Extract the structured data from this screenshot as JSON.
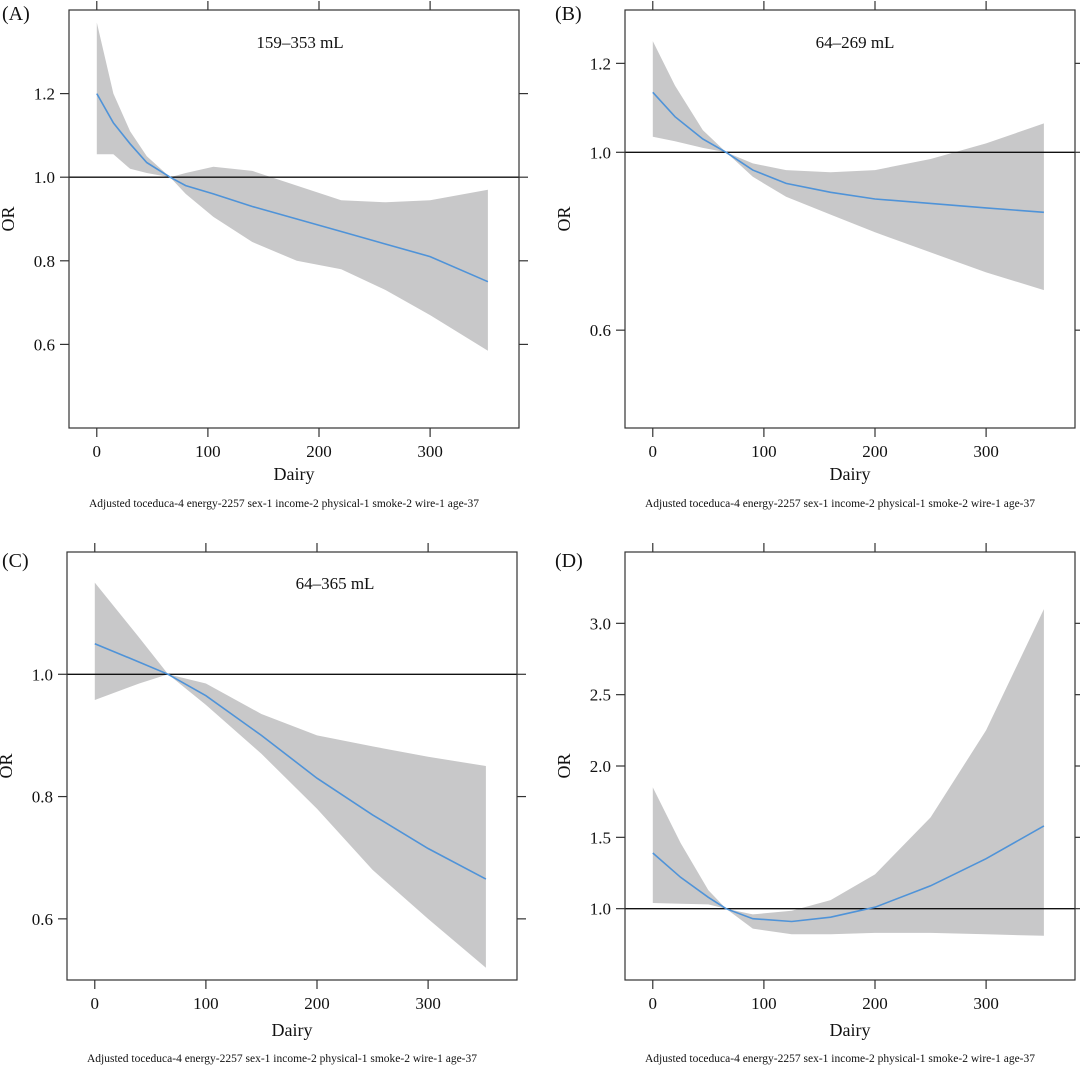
{
  "figure": {
    "panel_labels": [
      "(A)",
      "(B)",
      "(C)",
      "(D)"
    ]
  },
  "chart_data": [
    {
      "type": "line",
      "panel": "(A)",
      "title": "159–353 mL",
      "xlabel": "Dairy",
      "ylabel": "OR",
      "footnote": "Adjusted toceduca-4 energy-2257 sex-1 income-2 physical-1 smoke-2 wire-1 age-37",
      "xlim": [
        -25,
        380
      ],
      "ylim": [
        0.4,
        1.4
      ],
      "xticks": [
        0,
        100,
        200,
        300
      ],
      "yticks": [
        0.6,
        0.8,
        1.0,
        1.2
      ],
      "yticklabels": [
        "0.6",
        "0.8",
        "1.0",
        "1.2"
      ],
      "reference_y": 1.0,
      "x": [
        0,
        15,
        30,
        45,
        66,
        80,
        105,
        140,
        180,
        220,
        260,
        300,
        352
      ],
      "estimate": [
        1.2,
        1.13,
        1.08,
        1.035,
        1.0,
        0.98,
        0.96,
        0.93,
        0.9,
        0.87,
        0.84,
        0.81,
        0.75
      ],
      "ci_lower": [
        1.055,
        1.055,
        1.02,
        1.01,
        1.0,
        0.96,
        0.905,
        0.845,
        0.8,
        0.78,
        0.73,
        0.67,
        0.585
      ],
      "ci_upper": [
        1.37,
        1.2,
        1.11,
        1.05,
        1.0,
        1.01,
        1.025,
        1.015,
        0.98,
        0.945,
        0.94,
        0.945,
        0.97
      ]
    },
    {
      "type": "line",
      "panel": "(B)",
      "title": "64–269 mL",
      "xlabel": "Dairy",
      "ylabel": "OR",
      "footnote": "Adjusted toceduca-4 energy-2257 sex-1 income-2 physical-1 smoke-2 wire-1 age-37",
      "xlim": [
        -25,
        380
      ],
      "ylim": [
        0.38,
        1.32
      ],
      "xticks": [
        0,
        100,
        200,
        300
      ],
      "yticks": [
        0.6,
        1.0,
        1.2
      ],
      "yticklabels": [
        "0.6",
        "1.0",
        "1.2"
      ],
      "reference_y": 1.0,
      "x": [
        0,
        20,
        45,
        66,
        90,
        120,
        160,
        200,
        250,
        300,
        352
      ],
      "estimate": [
        1.135,
        1.08,
        1.03,
        1.0,
        0.96,
        0.93,
        0.91,
        0.895,
        0.885,
        0.875,
        0.865
      ],
      "ci_lower": [
        1.035,
        1.025,
        1.01,
        1.0,
        0.945,
        0.9,
        0.86,
        0.82,
        0.775,
        0.73,
        0.69
      ],
      "ci_upper": [
        1.25,
        1.15,
        1.05,
        1.0,
        0.975,
        0.96,
        0.955,
        0.96,
        0.985,
        1.02,
        1.065
      ]
    },
    {
      "type": "line",
      "panel": "(C)",
      "title": "64–365 mL",
      "xlabel": "Dairy",
      "ylabel": "OR",
      "footnote": "Adjusted toceduca-4 energy-2257 sex-1 income-2 physical-1 smoke-2 wire-1 age-37",
      "xlim": [
        -25,
        380
      ],
      "ylim": [
        0.5,
        1.2
      ],
      "xticks": [
        0,
        100,
        200,
        300
      ],
      "yticks": [
        0.6,
        0.8,
        1.0
      ],
      "yticklabels": [
        "0.6",
        "0.8",
        "1.0"
      ],
      "reference_y": 1.0,
      "x": [
        0,
        40,
        66,
        100,
        150,
        200,
        250,
        300,
        352
      ],
      "estimate": [
        1.05,
        1.02,
        1.0,
        0.965,
        0.9,
        0.83,
        0.77,
        0.715,
        0.665
      ],
      "ci_lower": [
        0.958,
        0.985,
        1.0,
        0.95,
        0.87,
        0.78,
        0.68,
        0.6,
        0.52
      ],
      "ci_upper": [
        1.15,
        1.06,
        1.0,
        0.985,
        0.935,
        0.9,
        0.882,
        0.865,
        0.85
      ]
    },
    {
      "type": "line",
      "panel": "(D)",
      "title": "",
      "xlabel": "Dairy",
      "ylabel": "OR",
      "footnote": "Adjusted toceduca-4 energy-2257 sex-1 income-2 physical-1 smoke-2 wire-1 age-37",
      "xlim": [
        -25,
        380
      ],
      "ylim": [
        0.5,
        3.5
      ],
      "xticks": [
        0,
        100,
        200,
        300
      ],
      "yticks": [
        1.0,
        1.5,
        2.0,
        2.5,
        3.0
      ],
      "yticklabels": [
        "1.0",
        "1.5",
        "2.0",
        "2.5",
        "3.0"
      ],
      "reference_y": 1.0,
      "x": [
        0,
        25,
        50,
        66,
        90,
        125,
        160,
        200,
        250,
        300,
        352
      ],
      "estimate": [
        1.39,
        1.22,
        1.08,
        1.0,
        0.93,
        0.91,
        0.94,
        1.01,
        1.16,
        1.35,
        1.58
      ],
      "ci_lower": [
        1.04,
        1.035,
        1.03,
        1.0,
        0.86,
        0.82,
        0.82,
        0.83,
        0.83,
        0.82,
        0.81
      ],
      "ci_upper": [
        1.85,
        1.46,
        1.13,
        1.0,
        0.96,
        0.985,
        1.06,
        1.24,
        1.64,
        2.25,
        3.1
      ]
    }
  ]
}
